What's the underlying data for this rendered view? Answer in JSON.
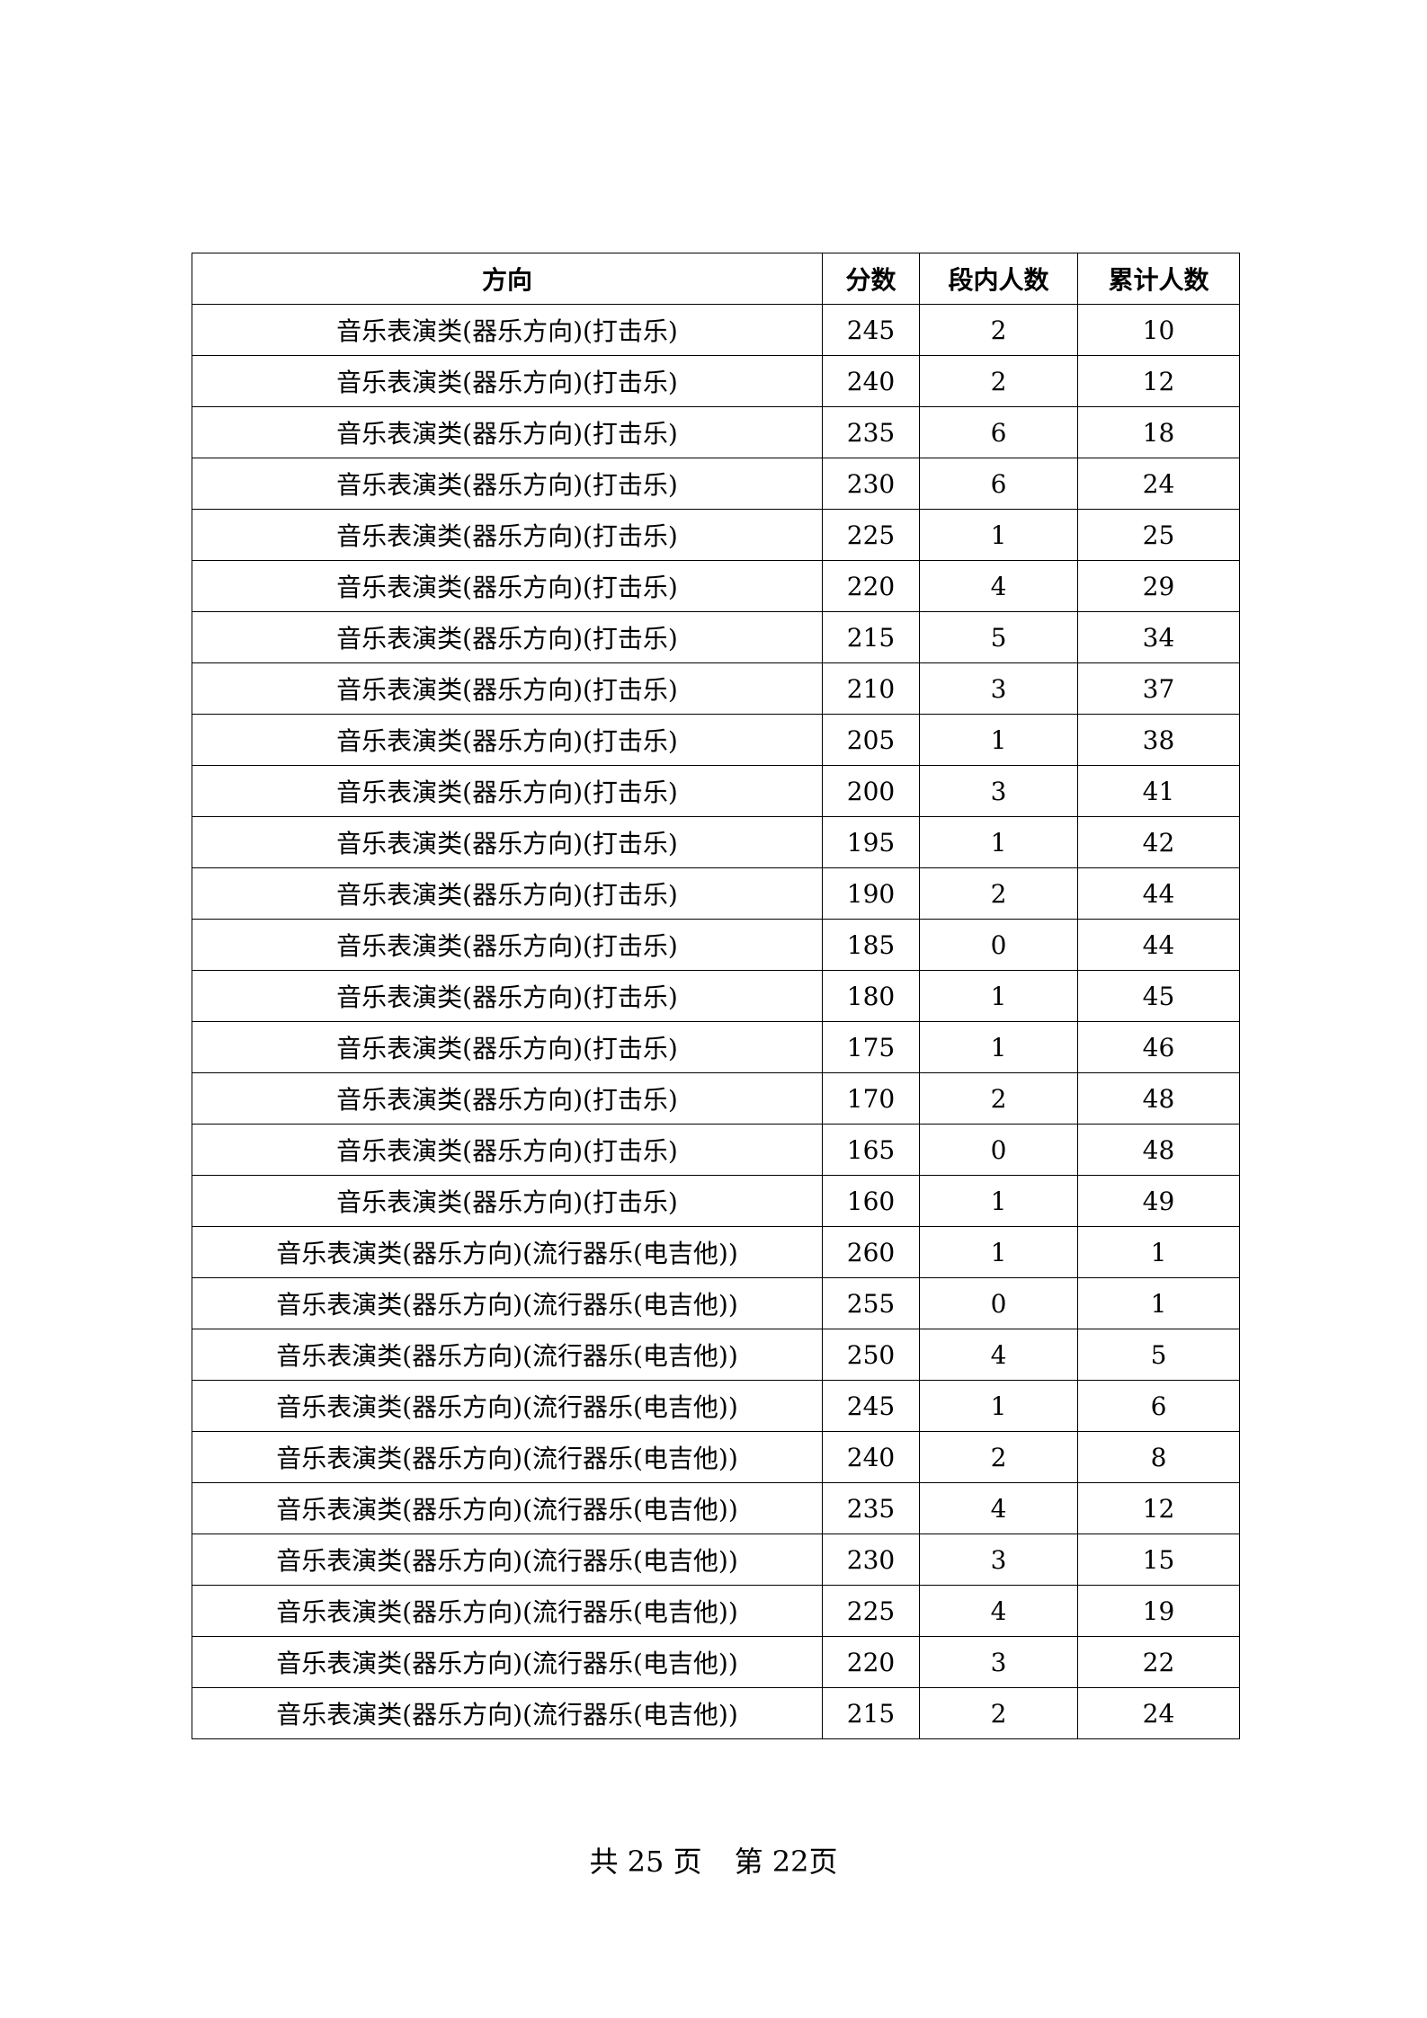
{
  "table": {
    "headers": [
      "方向",
      "分数",
      "段内人数",
      "累计人数"
    ],
    "rows": [
      [
        "音乐表演类(器乐方向)(打击乐)",
        "245",
        "2",
        "10"
      ],
      [
        "音乐表演类(器乐方向)(打击乐)",
        "240",
        "2",
        "12"
      ],
      [
        "音乐表演类(器乐方向)(打击乐)",
        "235",
        "6",
        "18"
      ],
      [
        "音乐表演类(器乐方向)(打击乐)",
        "230",
        "6",
        "24"
      ],
      [
        "音乐表演类(器乐方向)(打击乐)",
        "225",
        "1",
        "25"
      ],
      [
        "音乐表演类(器乐方向)(打击乐)",
        "220",
        "4",
        "29"
      ],
      [
        "音乐表演类(器乐方向)(打击乐)",
        "215",
        "5",
        "34"
      ],
      [
        "音乐表演类(器乐方向)(打击乐)",
        "210",
        "3",
        "37"
      ],
      [
        "音乐表演类(器乐方向)(打击乐)",
        "205",
        "1",
        "38"
      ],
      [
        "音乐表演类(器乐方向)(打击乐)",
        "200",
        "3",
        "41"
      ],
      [
        "音乐表演类(器乐方向)(打击乐)",
        "195",
        "1",
        "42"
      ],
      [
        "音乐表演类(器乐方向)(打击乐)",
        "190",
        "2",
        "44"
      ],
      [
        "音乐表演类(器乐方向)(打击乐)",
        "185",
        "0",
        "44"
      ],
      [
        "音乐表演类(器乐方向)(打击乐)",
        "180",
        "1",
        "45"
      ],
      [
        "音乐表演类(器乐方向)(打击乐)",
        "175",
        "1",
        "46"
      ],
      [
        "音乐表演类(器乐方向)(打击乐)",
        "170",
        "2",
        "48"
      ],
      [
        "音乐表演类(器乐方向)(打击乐)",
        "165",
        "0",
        "48"
      ],
      [
        "音乐表演类(器乐方向)(打击乐)",
        "160",
        "1",
        "49"
      ],
      [
        "音乐表演类(器乐方向)(流行器乐(电吉他))",
        "260",
        "1",
        "1"
      ],
      [
        "音乐表演类(器乐方向)(流行器乐(电吉他))",
        "255",
        "0",
        "1"
      ],
      [
        "音乐表演类(器乐方向)(流行器乐(电吉他))",
        "250",
        "4",
        "5"
      ],
      [
        "音乐表演类(器乐方向)(流行器乐(电吉他))",
        "245",
        "1",
        "6"
      ],
      [
        "音乐表演类(器乐方向)(流行器乐(电吉他))",
        "240",
        "2",
        "8"
      ],
      [
        "音乐表演类(器乐方向)(流行器乐(电吉他))",
        "235",
        "4",
        "12"
      ],
      [
        "音乐表演类(器乐方向)(流行器乐(电吉他))",
        "230",
        "3",
        "15"
      ],
      [
        "音乐表演类(器乐方向)(流行器乐(电吉他))",
        "225",
        "4",
        "19"
      ],
      [
        "音乐表演类(器乐方向)(流行器乐(电吉他))",
        "220",
        "3",
        "22"
      ],
      [
        "音乐表演类(器乐方向)(流行器乐(电吉他))",
        "215",
        "2",
        "24"
      ]
    ]
  },
  "footer": {
    "total": "共 25 页",
    "current": "第 22页"
  }
}
